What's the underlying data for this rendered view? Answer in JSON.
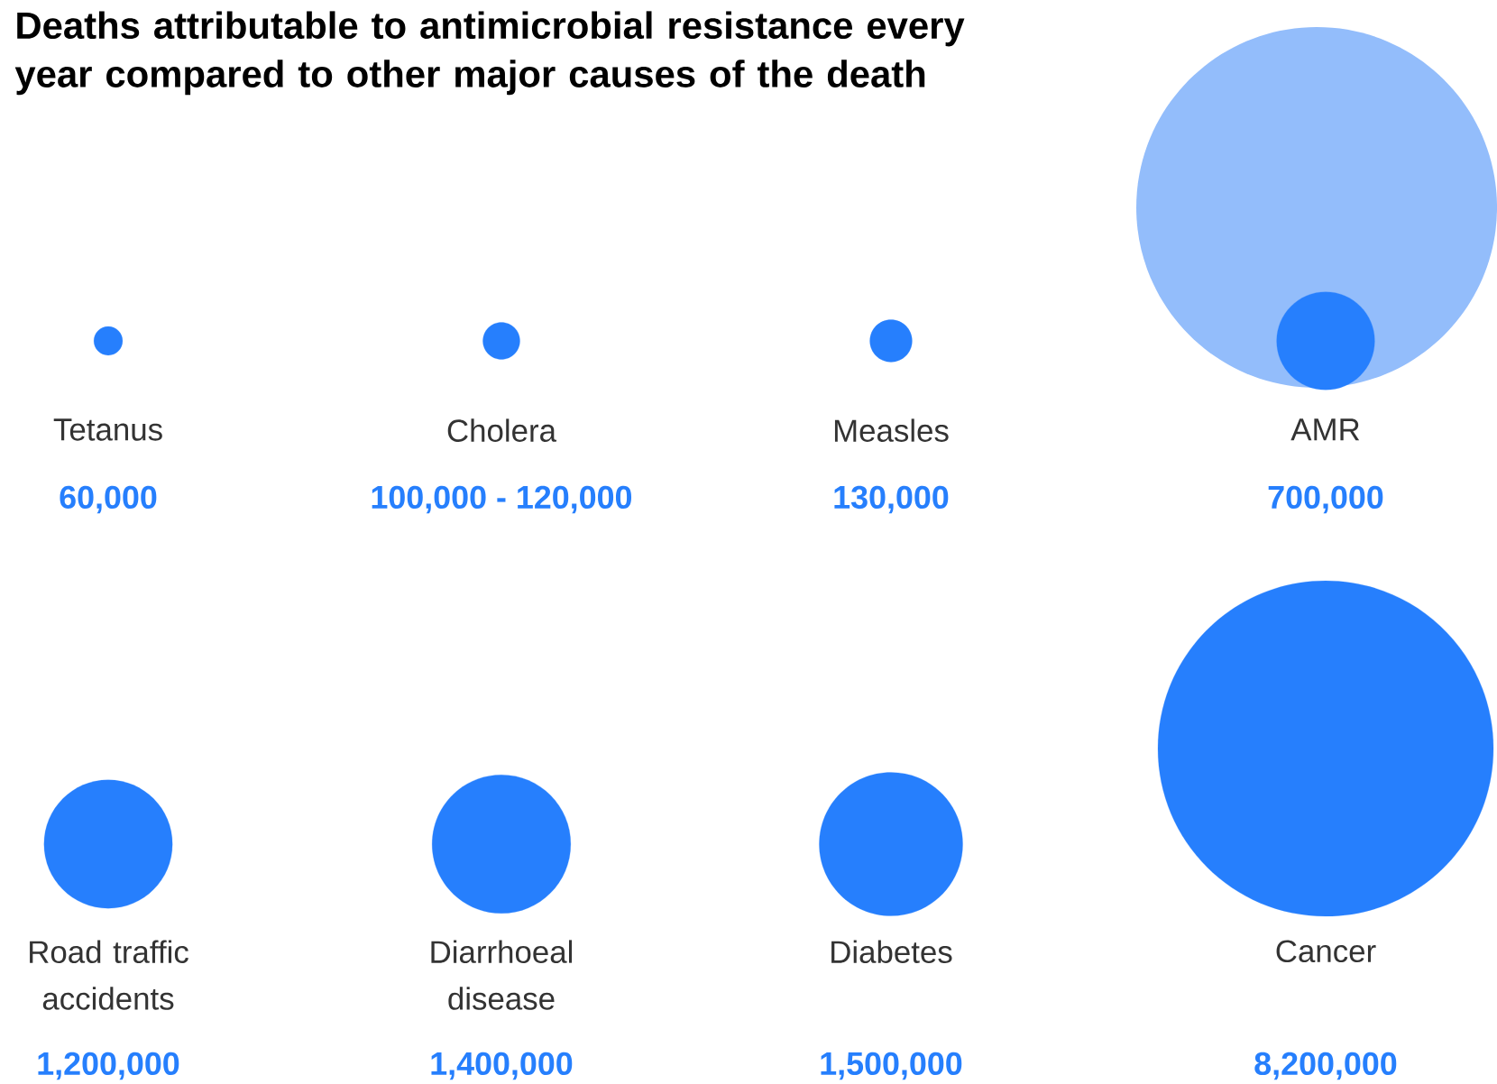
{
  "chart_data": {
    "type": "other",
    "title": "Deaths attributable to antimicrobial resistance every year compared to other major causes of the death",
    "categories": [
      "Tetanus",
      "Cholera",
      "Measles",
      "AMR",
      "Road traffic accidents",
      "Diarrhoeal disease",
      "Diabetes",
      "Cancer"
    ],
    "series": [
      {
        "color": "#267ffd",
        "values": [
          60000,
          100000,
          130000,
          700000,
          1200000,
          1400000,
          1500000,
          8200000
        ],
        "value_labels": [
          "60,000",
          "100,000 - 120,000",
          "130,000",
          "700,000",
          "1,200,000",
          "1,400,000",
          "1,500,000",
          "8,200,000"
        ]
      }
    ]
  }
}
